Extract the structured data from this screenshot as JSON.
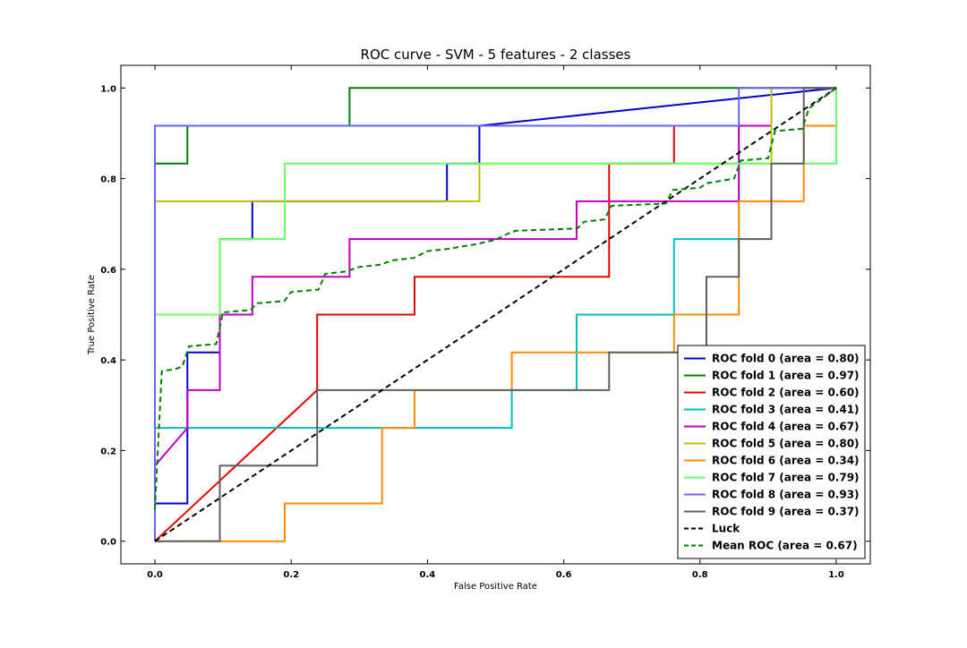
{
  "chart_data": {
    "type": "line",
    "title": "ROC curve - SVM - 5 features - 2 classes",
    "xlabel": "False Positive Rate",
    "ylabel": "True Positive Rate",
    "xlim": [
      -0.05,
      1.05
    ],
    "ylim": [
      -0.05,
      1.05
    ],
    "xticks": [
      "0.0",
      "0.2",
      "0.4",
      "0.6",
      "0.8",
      "1.0"
    ],
    "yticks": [
      "0.0",
      "0.2",
      "0.4",
      "0.6",
      "0.8",
      "1.0"
    ],
    "grid": false,
    "legend_position": "lower-right",
    "series": [
      {
        "name": "ROC fold 0 (area = 0.80)",
        "color": "#0000cc",
        "dash": "solid",
        "x": [
          0,
          0,
          0.0476,
          0.0476,
          0.0952,
          0.0952,
          0.1429,
          0.1429,
          0.4286,
          0.4286,
          0.4762,
          0.4762,
          1.0
        ],
        "y": [
          0,
          0.0833,
          0.0833,
          0.4167,
          0.4167,
          0.6667,
          0.6667,
          0.75,
          0.75,
          0.8333,
          0.8333,
          0.9167,
          1.0
        ]
      },
      {
        "name": "ROC fold 1 (area = 0.97)",
        "color": "#007f00",
        "dash": "solid",
        "x": [
          0,
          0,
          0.0476,
          0.0476,
          0.2857,
          0.2857,
          1.0
        ],
        "y": [
          0,
          0.8333,
          0.8333,
          0.9167,
          0.9167,
          1.0,
          1.0
        ]
      },
      {
        "name": "ROC fold 2 (area = 0.60)",
        "color": "#e50000",
        "dash": "solid",
        "x": [
          0,
          0.2381,
          0.2381,
          0.381,
          0.381,
          0.6667,
          0.6667,
          0.7619,
          0.7619,
          0.9048,
          0.9048,
          1.0
        ],
        "y": [
          0,
          0.3333,
          0.5,
          0.5,
          0.5833,
          0.5833,
          0.8333,
          0.8333,
          0.9167,
          0.9167,
          1.0,
          1.0
        ]
      },
      {
        "name": "ROC fold 3 (area = 0.41)",
        "color": "#00bfbf",
        "dash": "solid",
        "x": [
          0,
          0,
          0.5238,
          0.5238,
          0.619,
          0.619,
          0.7619,
          0.7619,
          0.8571,
          0.8571,
          0.9048,
          0.9048,
          1.0
        ],
        "y": [
          0,
          0.25,
          0.25,
          0.3333,
          0.3333,
          0.5,
          0.5,
          0.6667,
          0.6667,
          0.9167,
          0.9167,
          1.0,
          1.0
        ]
      },
      {
        "name": "ROC fold 4 (area = 0.67)",
        "color": "#bf00bf",
        "dash": "solid",
        "x": [
          0,
          0,
          0.0476,
          0.0476,
          0.0952,
          0.0952,
          0.1429,
          0.1429,
          0.2857,
          0.2857,
          0.619,
          0.619,
          0.8571,
          0.8571,
          0.9048,
          0.9048,
          1.0
        ],
        "y": [
          0,
          0.1667,
          0.25,
          0.3333,
          0.3333,
          0.5,
          0.5,
          0.5833,
          0.5833,
          0.6667,
          0.6667,
          0.75,
          0.75,
          0.9167,
          0.9167,
          1.0,
          1.0
        ]
      },
      {
        "name": "ROC fold 5 (area = 0.80)",
        "color": "#bfbf00",
        "dash": "solid",
        "x": [
          0,
          0,
          0.4762,
          0.4762,
          0.9048,
          0.9048,
          1.0
        ],
        "y": [
          0,
          0.75,
          0.75,
          0.8333,
          0.8333,
          1.0,
          1.0
        ]
      },
      {
        "name": "ROC fold 6 (area = 0.34)",
        "color": "#ff8c00",
        "dash": "solid",
        "x": [
          0,
          0.0952,
          0.1905,
          0.1905,
          0.3333,
          0.3333,
          0.381,
          0.381,
          0.5238,
          0.5238,
          0.7619,
          0.7619,
          0.8571,
          0.8571,
          0.9524,
          0.9524,
          1.0
        ],
        "y": [
          0,
          0,
          0,
          0.0833,
          0.0833,
          0.25,
          0.25,
          0.3333,
          0.3333,
          0.4167,
          0.4167,
          0.5,
          0.5,
          0.75,
          0.75,
          0.9167,
          0.9167
        ]
      },
      {
        "name": "ROC fold 7 (area = 0.79)",
        "color": "#66ff66",
        "dash": "solid",
        "x": [
          0,
          0,
          0.0952,
          0.0952,
          0.1905,
          0.1905,
          1.0,
          1.0
        ],
        "y": [
          0,
          0.5,
          0.5,
          0.6667,
          0.6667,
          0.8333,
          0.8333,
          1.0
        ]
      },
      {
        "name": "ROC fold 8 (area = 0.93)",
        "color": "#6666ee",
        "dash": "solid",
        "x": [
          0,
          0,
          0.8571,
          0.8571,
          1.0
        ],
        "y": [
          0,
          0.9167,
          0.9167,
          1.0,
          1.0
        ]
      },
      {
        "name": "ROC fold 9 (area = 0.37)",
        "color": "#606060",
        "dash": "solid",
        "x": [
          0,
          0.0952,
          0.0952,
          0.2381,
          0.2381,
          0.6667,
          0.6667,
          0.8095,
          0.8095,
          0.8571,
          0.8571,
          0.9048,
          0.9048,
          0.9524,
          0.9524,
          1.0
        ],
        "y": [
          0,
          0,
          0.1667,
          0.1667,
          0.3333,
          0.3333,
          0.4167,
          0.4167,
          0.5833,
          0.5833,
          0.6667,
          0.6667,
          0.8333,
          0.8333,
          1.0,
          1.0
        ]
      },
      {
        "name": "Luck",
        "color": "#000000",
        "dash": "dashed",
        "x": [
          0,
          1
        ],
        "y": [
          0,
          1
        ]
      },
      {
        "name": "Mean ROC (area = 0.67)",
        "color": "#007f00",
        "dash": "dashed",
        "x": [
          0,
          0.01,
          0.03,
          0.04,
          0.05,
          0.09,
          0.1,
          0.14,
          0.15,
          0.19,
          0.2,
          0.24,
          0.25,
          0.28,
          0.3,
          0.33,
          0.35,
          0.38,
          0.4,
          0.43,
          0.45,
          0.47,
          0.5,
          0.52,
          0.53,
          0.62,
          0.63,
          0.66,
          0.67,
          0.75,
          0.76,
          0.8,
          0.81,
          0.85,
          0.86,
          0.9,
          0.91,
          0.95,
          0.96,
          1.0
        ],
        "y": [
          0.07,
          0.375,
          0.38,
          0.385,
          0.43,
          0.435,
          0.505,
          0.51,
          0.525,
          0.53,
          0.55,
          0.555,
          0.59,
          0.595,
          0.605,
          0.61,
          0.62,
          0.625,
          0.64,
          0.645,
          0.65,
          0.655,
          0.665,
          0.68,
          0.685,
          0.69,
          0.705,
          0.71,
          0.74,
          0.745,
          0.775,
          0.78,
          0.79,
          0.8,
          0.84,
          0.845,
          0.905,
          0.91,
          0.955,
          1.0
        ]
      }
    ]
  }
}
